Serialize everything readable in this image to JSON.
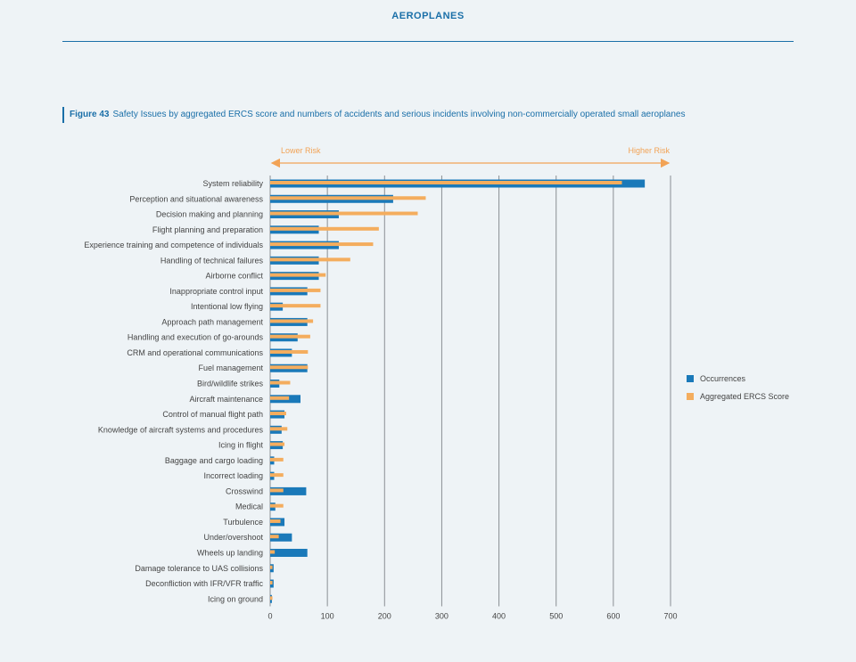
{
  "header": {
    "title": "AEROPLANES"
  },
  "figure": {
    "number": "Figure 43",
    "caption": "Safety Issues by aggregated ERCS score and numbers of accidents and serious incidents involving non-commercially operated small aeroplanes"
  },
  "risk_scale": {
    "lower": "Lower Risk",
    "higher": "Higher Risk"
  },
  "colors": {
    "occurrences": "#1a79b9",
    "ercs": "#f4ad5e",
    "grid": "#8a8f94",
    "arrow": "#f2a356",
    "label": "#444444"
  },
  "chart_data": {
    "type": "bar",
    "orientation": "horizontal",
    "title": "",
    "xlabel": "",
    "ylabel": "",
    "xlim": [
      0,
      700
    ],
    "xticks": [
      0,
      100,
      200,
      300,
      400,
      500,
      600,
      700
    ],
    "grid": true,
    "legend_position": "right",
    "categories": [
      "System reliability",
      "Perception and situational awareness",
      "Decision making and planning",
      "Flight planning and preparation",
      "Experience training and competence of individuals",
      "Handling of technical failures",
      "Airborne conflict",
      "Inappropriate control input",
      "Intentional low flying",
      "Approach path management",
      "Handling and execution of go-arounds",
      "CRM and operational communications",
      "Fuel management",
      "Bird/wildlife strikes",
      "Aircraft maintenance",
      "Control of manual flight path",
      "Knowledge of aircraft systems and procedures",
      "Icing in flight",
      "Baggage and cargo loading",
      "Incorrect loading",
      "Crosswind",
      "Medical",
      "Turbulence",
      "Under/overshoot",
      "Wheels up landing",
      "Damage tolerance to UAS collisions",
      "Deconfliction with IFR/VFR traffic",
      "Icing on ground"
    ],
    "series": [
      {
        "name": "Occurrences",
        "values": [
          655,
          215,
          120,
          85,
          120,
          85,
          85,
          65,
          22,
          65,
          48,
          38,
          65,
          16,
          53,
          25,
          20,
          22,
          7,
          7,
          63,
          9,
          25,
          38,
          65,
          6,
          6,
          3
        ]
      },
      {
        "name": "Aggregated ERCS Score",
        "values": [
          615,
          272,
          258,
          190,
          180,
          140,
          97,
          88,
          88,
          75,
          70,
          66,
          66,
          35,
          33,
          28,
          30,
          25,
          23,
          23,
          23,
          23,
          18,
          15,
          8,
          4,
          4,
          4
        ]
      }
    ]
  }
}
